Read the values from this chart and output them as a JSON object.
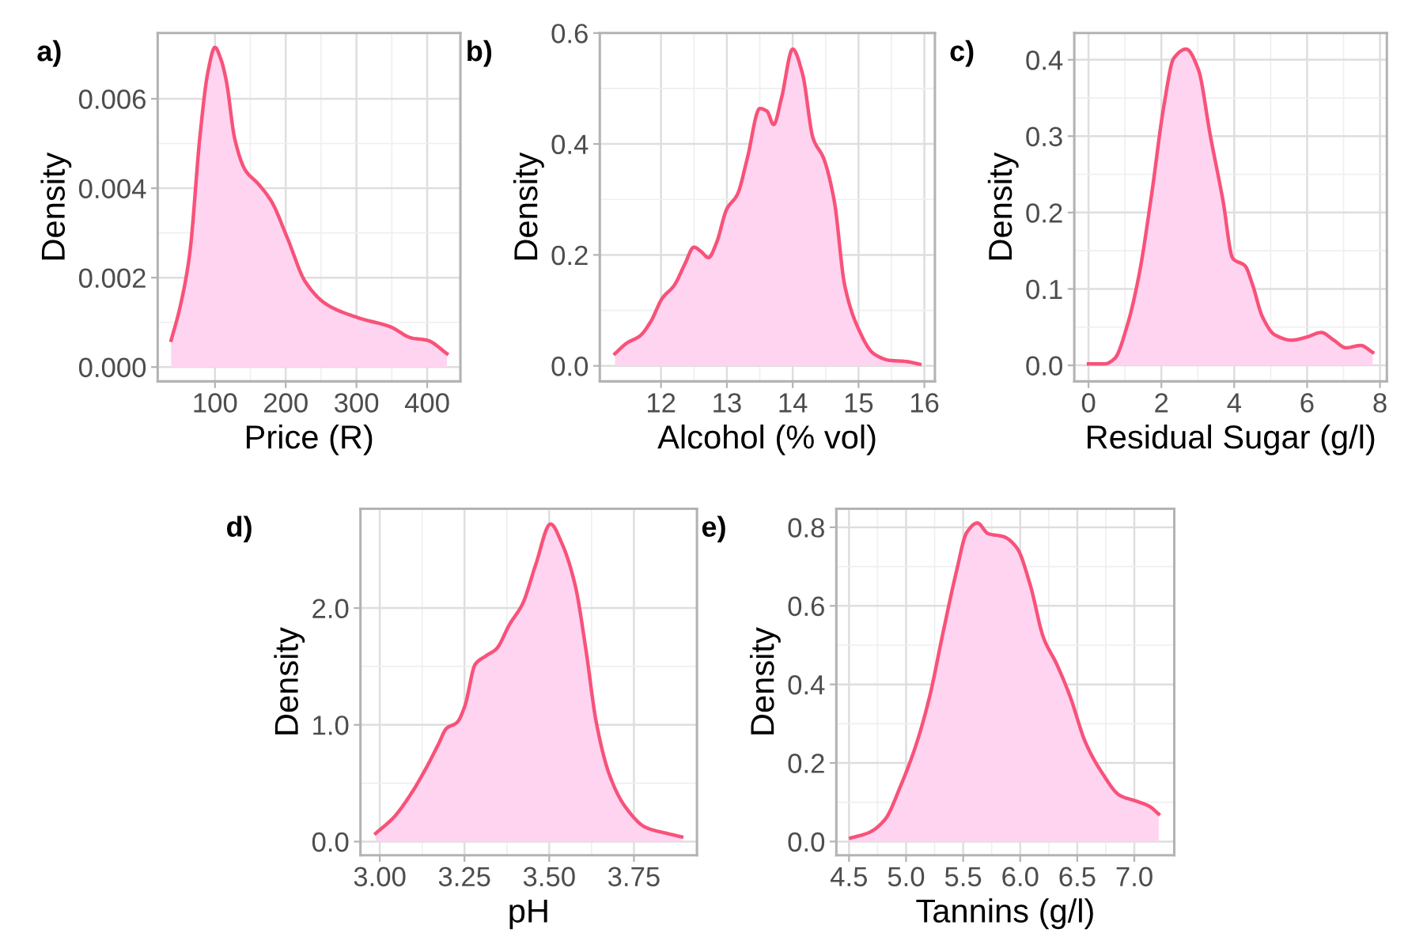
{
  "chart_data": [
    {
      "type": "area",
      "title": "a)",
      "xlabel": "Price (R)",
      "ylabel": "Density",
      "grid": true,
      "xlim": [
        19,
        447
      ],
      "ylim": [
        -0.00032,
        0.00747
      ],
      "xticks": [
        100,
        200,
        300,
        400
      ],
      "yticks": [
        {
          "value": 0,
          "label": "0.000"
        },
        0.002,
        0.004,
        0.006
      ],
      "series": [
        {
          "color": "#f8527a",
          "x": [
            38,
            50,
            64,
            79,
            90,
            100,
            108,
            116,
            128,
            143,
            161,
            180,
            202,
            228,
            258,
            303,
            348,
            378,
            400,
            428
          ],
          "values": [
            0.0006,
            0.0013,
            0.0025,
            0.0052,
            0.0066,
            0.00715,
            0.0069,
            0.0064,
            0.0051,
            0.0044,
            0.0041,
            0.0037,
            0.0029,
            0.0019,
            0.0014,
            0.0011,
            0.0009,
            0.00065,
            0.0006,
            0.0003
          ]
        }
      ]
    },
    {
      "type": "area",
      "title": "b)",
      "xlabel": "Alcohol (% vol)",
      "ylabel": "Density",
      "grid": true,
      "xlim": [
        11.07,
        16.16
      ],
      "ylim": [
        -0.028,
        0.6
      ],
      "xticks": [
        12,
        13,
        14,
        15,
        16
      ],
      "yticks": [
        {
          "value": 0,
          "label": "0.0"
        },
        0.2,
        0.4,
        0.6
      ],
      "series": [
        {
          "color": "#f8527a",
          "x": [
            11.3,
            11.48,
            11.68,
            11.84,
            12.02,
            12.2,
            12.36,
            12.5,
            12.6,
            12.72,
            12.84,
            13.0,
            13.16,
            13.31,
            13.5,
            13.61,
            13.71,
            13.83,
            14.0,
            14.15,
            14.31,
            14.47,
            14.63,
            14.79,
            14.99,
            15.23,
            15.47,
            15.71,
            15.93
          ],
          "values": [
            0.022,
            0.041,
            0.054,
            0.079,
            0.122,
            0.145,
            0.183,
            0.214,
            0.207,
            0.195,
            0.221,
            0.283,
            0.309,
            0.374,
            0.464,
            0.459,
            0.435,
            0.483,
            0.571,
            0.526,
            0.41,
            0.374,
            0.298,
            0.145,
            0.069,
            0.022,
            0.01,
            0.008,
            0.003
          ]
        }
      ]
    },
    {
      "type": "area",
      "title": "c)",
      "xlabel": "Residual Sugar (g/l)",
      "ylabel": "Density",
      "grid": true,
      "xlim": [
        -0.39,
        8.19
      ],
      "ylim": [
        -0.021,
        0.435
      ],
      "xticks": [
        0,
        2,
        4,
        6,
        8
      ],
      "yticks": [
        {
          "value": 0,
          "label": "0.0"
        },
        0.1,
        0.2,
        0.3,
        0.4
      ],
      "series": [
        {
          "color": "#f8527a",
          "x": [
            0,
            0.45,
            0.72,
            1.05,
            1.39,
            1.73,
            2.07,
            2.34,
            2.68,
            3.01,
            3.35,
            3.69,
            3.96,
            4.3,
            4.5,
            4.77,
            5.11,
            5.58,
            5.99,
            6.39,
            6.73,
            7.07,
            7.47,
            7.8
          ],
          "values": [
            0.002,
            0.002,
            0.009,
            0.05,
            0.119,
            0.223,
            0.34,
            0.402,
            0.414,
            0.388,
            0.299,
            0.216,
            0.14,
            0.13,
            0.106,
            0.064,
            0.04,
            0.033,
            0.037,
            0.043,
            0.033,
            0.023,
            0.026,
            0.017
          ]
        }
      ]
    },
    {
      "type": "area",
      "title": "d)",
      "xlabel": "pH",
      "ylabel": "Density",
      "grid": true,
      "xlim": [
        2.943,
        3.936
      ],
      "ylim": [
        -0.117,
        2.85
      ],
      "xticks": [
        {
          "value": 3.0,
          "label": "3.00"
        },
        3.25,
        {
          "value": 3.5,
          "label": "3.50"
        },
        3.75
      ],
      "yticks": [
        {
          "value": 0,
          "label": "0.0"
        },
        {
          "value": 1,
          "label": "1.0"
        },
        {
          "value": 2,
          "label": "2.0"
        }
      ],
      "series": [
        {
          "color": "#f8527a",
          "x": [
            2.988,
            3.042,
            3.088,
            3.135,
            3.174,
            3.197,
            3.228,
            3.251,
            3.282,
            3.313,
            3.344,
            3.383,
            3.422,
            3.46,
            3.504,
            3.538,
            3.577,
            3.608,
            3.639,
            3.678,
            3.724,
            3.786,
            3.848,
            3.891
          ],
          "values": [
            0.07,
            0.21,
            0.39,
            0.62,
            0.84,
            0.97,
            1.02,
            1.16,
            1.52,
            1.59,
            1.65,
            1.86,
            2.04,
            2.37,
            2.72,
            2.55,
            2.19,
            1.65,
            1.02,
            0.57,
            0.3,
            0.12,
            0.07,
            0.04
          ]
        }
      ]
    },
    {
      "type": "area",
      "title": "e)",
      "xlabel": "Tannins (g/l)",
      "ylabel": "Density",
      "grid": true,
      "xlim": [
        4.389,
        7.35
      ],
      "ylim": [
        -0.035,
        0.847
      ],
      "xticks": [
        4.5,
        {
          "value": 5,
          "label": "5.0"
        },
        5.5,
        {
          "value": 6,
          "label": "6.0"
        },
        6.5,
        {
          "value": 7,
          "label": "7.0"
        }
      ],
      "yticks": [
        {
          "value": 0,
          "label": "0.0"
        },
        0.2,
        0.4,
        0.6,
        0.8
      ],
      "series": [
        {
          "color": "#f8527a",
          "x": [
            4.514,
            4.676,
            4.815,
            4.954,
            5.093,
            5.208,
            5.324,
            5.44,
            5.532,
            5.625,
            5.718,
            5.856,
            5.972,
            6.088,
            6.204,
            6.319,
            6.435,
            6.574,
            6.713,
            6.875,
            7.014,
            7.13,
            7.213
          ],
          "values": [
            0.009,
            0.023,
            0.056,
            0.143,
            0.251,
            0.371,
            0.532,
            0.686,
            0.787,
            0.811,
            0.784,
            0.776,
            0.747,
            0.653,
            0.519,
            0.452,
            0.371,
            0.251,
            0.177,
            0.117,
            0.103,
            0.09,
            0.07
          ]
        }
      ]
    }
  ]
}
